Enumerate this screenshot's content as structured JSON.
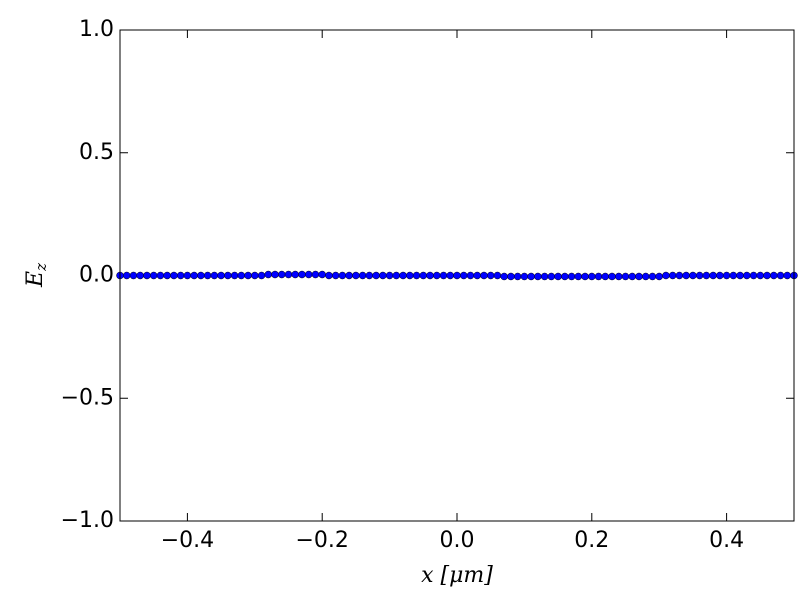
{
  "chart_data": {
    "type": "scatter",
    "xlabel": "x [μm]",
    "ylabel": {
      "text": "E",
      "subscript": "z"
    },
    "xlim": [
      -0.5,
      0.5
    ],
    "ylim": [
      -1,
      1
    ],
    "xticks": [
      {
        "value": -0.4,
        "label": "−0.4"
      },
      {
        "value": -0.2,
        "label": "−0.2"
      },
      {
        "value": 0,
        "label": "0.0"
      },
      {
        "value": 0.2,
        "label": "0.2"
      },
      {
        "value": 0.4,
        "label": "0.4"
      }
    ],
    "yticks": [
      {
        "value": -1,
        "label": "−1.0"
      },
      {
        "value": -0.5,
        "label": "−0.5"
      },
      {
        "value": 0,
        "label": "0.0"
      },
      {
        "value": 0.5,
        "label": "0.5"
      },
      {
        "value": 1,
        "label": "1.0"
      }
    ],
    "x": [
      -0.5,
      -0.49,
      -0.48,
      -0.47,
      -0.46,
      -0.45,
      -0.44,
      -0.43,
      -0.42,
      -0.41,
      -0.4,
      -0.39,
      -0.38,
      -0.37,
      -0.36,
      -0.35,
      -0.34,
      -0.33,
      -0.32,
      -0.31,
      -0.3,
      -0.29,
      -0.28,
      -0.27,
      -0.26,
      -0.25,
      -0.24,
      -0.23,
      -0.22,
      -0.21,
      -0.2,
      -0.19,
      -0.18,
      -0.17,
      -0.16,
      -0.15,
      -0.14,
      -0.13,
      -0.12,
      -0.11,
      -0.1,
      -0.09,
      -0.08,
      -0.07,
      -0.06,
      -0.05,
      -0.04,
      -0.03,
      -0.02,
      -0.01,
      0,
      0.01,
      0.02,
      0.03,
      0.04,
      0.05,
      0.06,
      0.07,
      0.08,
      0.09,
      0.1,
      0.11,
      0.12,
      0.13,
      0.14,
      0.15,
      0.16,
      0.17,
      0.18,
      0.19,
      0.2,
      0.21,
      0.22,
      0.23,
      0.24,
      0.25,
      0.26,
      0.27,
      0.28,
      0.29,
      0.3,
      0.31,
      0.32,
      0.33,
      0.34,
      0.35,
      0.36,
      0.37,
      0.38,
      0.39,
      0.4,
      0.41,
      0.42,
      0.43,
      0.44,
      0.45,
      0.46,
      0.47,
      0.48,
      0.49,
      0.5
    ],
    "series": [
      {
        "color": "#0000ff",
        "values": [
          0,
          0,
          0,
          0,
          0,
          0,
          0,
          0,
          0,
          0,
          0,
          0,
          0,
          0,
          0,
          0,
          0,
          0,
          0,
          0,
          0,
          0,
          0.004,
          0.004,
          0.004,
          0.004,
          0.004,
          0.004,
          0.004,
          0.004,
          0.004,
          0,
          0,
          0,
          0,
          0,
          0,
          0,
          0,
          0,
          0,
          0,
          0,
          0,
          0,
          0,
          0,
          0,
          0,
          0,
          0,
          0,
          0,
          0,
          0,
          0,
          0,
          -0.004,
          -0.004,
          -0.004,
          -0.004,
          -0.004,
          -0.004,
          -0.004,
          -0.004,
          -0.004,
          -0.004,
          -0.004,
          -0.004,
          -0.004,
          -0.004,
          -0.004,
          -0.004,
          -0.004,
          -0.004,
          -0.004,
          -0.004,
          -0.004,
          -0.004,
          -0.004,
          -0.004,
          0,
          0,
          0,
          0,
          0,
          0,
          0,
          0,
          0,
          0,
          0,
          0,
          0,
          0,
          0,
          0,
          0,
          0,
          0,
          0
        ]
      }
    ]
  }
}
